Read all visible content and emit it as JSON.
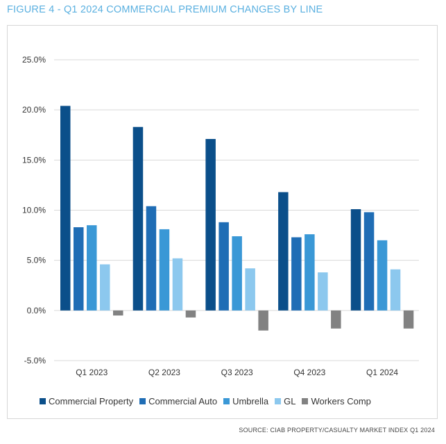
{
  "figure_title": "FIGURE 4 - Q1 2024 COMMERCIAL PREMIUM CHANGES BY LINE",
  "source": "SOURCE: CIAB PROPERTY/CASUALTY MARKET INDEX Q1 2024",
  "chart_data": {
    "type": "bar",
    "title": "FIGURE 4 - Q1 2024 COMMERCIAL PREMIUM CHANGES BY LINE",
    "categories": [
      "Q1 2023",
      "Q2 2023",
      "Q3 2023",
      "Q4 2023",
      "Q1 2024"
    ],
    "series": [
      {
        "name": "Commercial Property",
        "color": "#0b4f8a",
        "values": [
          20.4,
          18.3,
          17.1,
          11.8,
          10.1
        ]
      },
      {
        "name": "Commercial Auto",
        "color": "#1f6db5",
        "values": [
          8.3,
          10.4,
          8.8,
          7.3,
          9.8
        ]
      },
      {
        "name": "Umbrella",
        "color": "#3a98d6",
        "values": [
          8.5,
          8.1,
          7.4,
          7.6,
          7.0
        ]
      },
      {
        "name": "GL",
        "color": "#8cc8ee",
        "values": [
          4.6,
          5.2,
          4.2,
          3.8,
          4.1
        ]
      },
      {
        "name": "Workers Comp",
        "color": "#828282",
        "values": [
          -0.5,
          -0.7,
          -2.0,
          -1.8,
          -1.8
        ]
      }
    ],
    "yticks": [
      "25.0%",
      "20.0%",
      "15.0%",
      "10.0%",
      "5.0%",
      "0.0%",
      "-5.0%"
    ],
    "ylim": [
      -5,
      25
    ],
    "grid": true,
    "legend_position": "bottom"
  }
}
